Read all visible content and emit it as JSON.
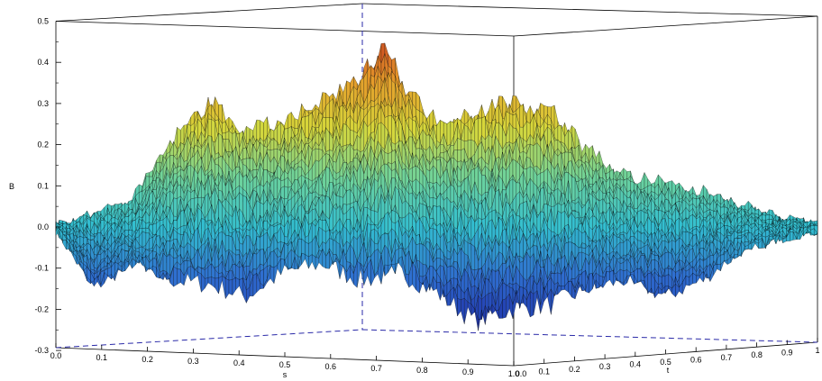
{
  "chart_data": {
    "type": "surface3d",
    "zlabel": "B",
    "xlabel": "s",
    "ylabel": "t",
    "zlim": [
      -0.3,
      0.5
    ],
    "xlim": [
      0,
      1
    ],
    "ylim": [
      0,
      1
    ],
    "z_ticks": [
      "-0.3",
      "-0.2",
      "-0.1",
      "0.0",
      "0.1",
      "0.2",
      "0.3",
      "0.4",
      "0.5"
    ],
    "s_ticks": [
      "0.0",
      "0.1",
      "0.2",
      "0.3",
      "0.4",
      "0.5",
      "0.6",
      "0.7",
      "0.8",
      "0.9",
      "1.0"
    ],
    "t_ticks": [
      "0.0",
      "0.1",
      "0.2",
      "0.3",
      "0.4",
      "0.5",
      "0.6",
      "0.7",
      "0.8",
      "0.9",
      "1"
    ],
    "z_max": 0.47,
    "z_min": -0.23,
    "colormap": [
      "#1f2fa8",
      "#2f6fd0",
      "#33bfd0",
      "#6fd39a",
      "#d7d73a",
      "#e59a2a",
      "#c8351d"
    ],
    "grid": false,
    "legend": "none"
  }
}
